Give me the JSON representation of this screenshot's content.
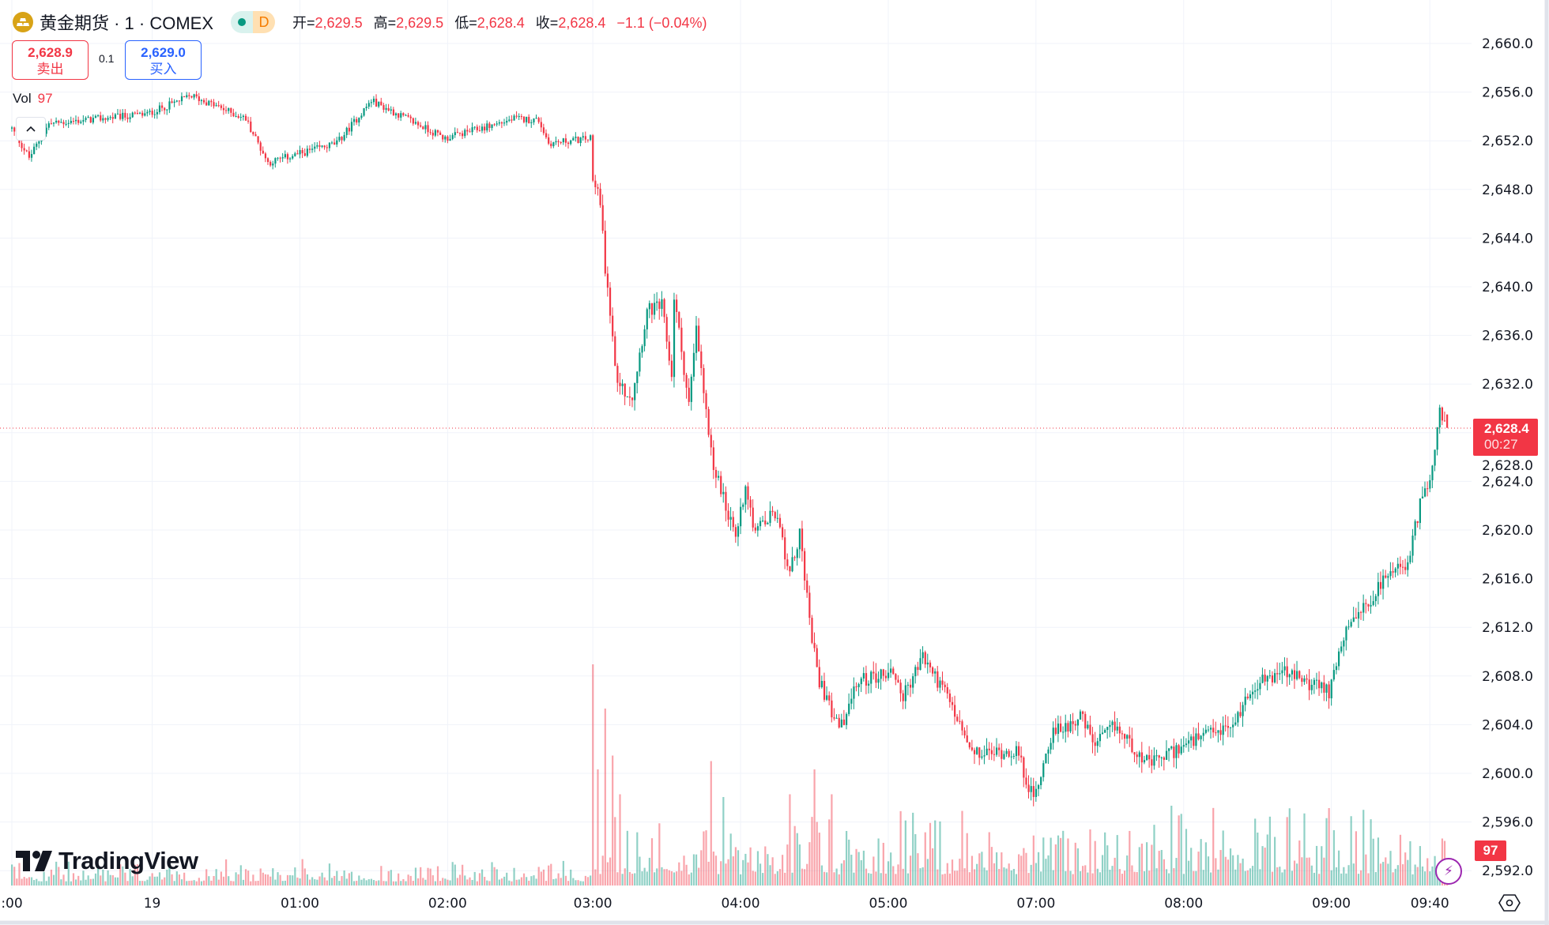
{
  "header": {
    "title": "黄金期货 · 1 · COMEX",
    "interval_badge": "D",
    "ohlc": [
      {
        "k": "开=",
        "v": "2,629.5"
      },
      {
        "k": "高=",
        "v": "2,629.5"
      },
      {
        "k": "低=",
        "v": "2,628.4"
      },
      {
        "k": "收=",
        "v": "2,628.4"
      }
    ],
    "change": "−1.1 (−0.04%)"
  },
  "trade": {
    "sell_price": "2,628.9",
    "sell_label": "卖出",
    "spread": "0.1",
    "buy_price": "2,629.0",
    "buy_label": "买入"
  },
  "volume_legend": {
    "label": "Vol",
    "value": "97"
  },
  "brand": "TradingView",
  "last_price": {
    "price": "2,628.4",
    "countdown": "00:27"
  },
  "last_volume": "97",
  "colors": {
    "up": "#089981",
    "down": "#f23645",
    "accent": "#2962ff",
    "grid": "#f0f3fa"
  },
  "chart_data": {
    "type": "candlestick",
    "title": "黄金期货 · 1 · COMEX",
    "ylim": [
      2592,
      2660
    ],
    "y_ticks": [
      "2,660.0",
      "2,656.0",
      "2,652.0",
      "2,648.0",
      "2,644.0",
      "2,640.0",
      "2,636.0",
      "2,632.0",
      "2,628.0",
      "2,624.0",
      "2,620.0",
      "2,616.0",
      "2,612.0",
      "2,608.0",
      "2,604.0",
      "2,600.0",
      "2,596.0",
      "2,592.0"
    ],
    "y_tick_values": [
      2660,
      2656,
      2652,
      2648,
      2644,
      2640,
      2636,
      2632,
      2628,
      2624,
      2620,
      2616,
      2612,
      2608,
      2604,
      2600,
      2596,
      2592
    ],
    "x_ticks": [
      {
        "label": ":00",
        "bar": 0
      },
      {
        "label": "19",
        "bar": 57
      },
      {
        "label": "01:00",
        "bar": 117
      },
      {
        "label": "02:00",
        "bar": 177
      },
      {
        "label": "03:00",
        "bar": 236
      },
      {
        "label": "04:00",
        "bar": 296
      },
      {
        "label": "05:00",
        "bar": 356
      },
      {
        "label": "07:00",
        "bar": 416
      },
      {
        "label": "08:00",
        "bar": 476
      },
      {
        "label": "09:00",
        "bar": 536
      },
      {
        "label": "09:40",
        "bar": 576
      }
    ],
    "bar_count": 584,
    "price_path": [
      [
        0,
        2653
      ],
      [
        7,
        2650.6
      ],
      [
        15,
        2653.4
      ],
      [
        55,
        2654.2
      ],
      [
        73,
        2655.7
      ],
      [
        95,
        2653.8
      ],
      [
        104,
        2650.2
      ],
      [
        132,
        2651.8
      ],
      [
        146,
        2655.3
      ],
      [
        176,
        2652.2
      ],
      [
        204,
        2653.8
      ],
      [
        214,
        2653.7
      ],
      [
        218,
        2651.8
      ],
      [
        235,
        2652.2
      ],
      [
        236,
        2648.5
      ],
      [
        239,
        2647.3
      ],
      [
        241,
        2641.6
      ],
      [
        246,
        2631.9
      ],
      [
        252,
        2631.1
      ],
      [
        258,
        2638
      ],
      [
        264,
        2638.4
      ],
      [
        268,
        2632.7
      ],
      [
        269,
        2639.2
      ],
      [
        275,
        2630.3
      ],
      [
        278,
        2636.4
      ],
      [
        284,
        2626.2
      ],
      [
        294,
        2619.3
      ],
      [
        298,
        2623.8
      ],
      [
        302,
        2619.8
      ],
      [
        310,
        2621.4
      ],
      [
        316,
        2616.5
      ],
      [
        320,
        2619.8
      ],
      [
        324,
        2612.4
      ],
      [
        328,
        2607.6
      ],
      [
        336,
        2603.5
      ],
      [
        344,
        2607.6
      ],
      [
        358,
        2608.4
      ],
      [
        362,
        2606.3
      ],
      [
        370,
        2609.6
      ],
      [
        380,
        2606.3
      ],
      [
        390,
        2601.5
      ],
      [
        408,
        2601.9
      ],
      [
        415,
        2597.8
      ],
      [
        422,
        2603.1
      ],
      [
        434,
        2604.7
      ],
      [
        440,
        2602.3
      ],
      [
        448,
        2603.9
      ],
      [
        462,
        2600.7
      ],
      [
        476,
        2602.3
      ],
      [
        496,
        2603.9
      ],
      [
        504,
        2607.2
      ],
      [
        516,
        2608.4
      ],
      [
        535,
        2606.7
      ],
      [
        541,
        2611.2
      ],
      [
        557,
        2615.7
      ],
      [
        567,
        2617.3
      ],
      [
        573,
        2623
      ],
      [
        577,
        2625
      ],
      [
        580,
        2629.5
      ],
      [
        583,
        2628.4
      ]
    ],
    "last_bar": {
      "open": 2629.5,
      "high": 2629.5,
      "low": 2628.4,
      "close": 2628.4,
      "volume": 97
    },
    "volume_spikes": [
      [
        236,
        800
      ],
      [
        238,
        420
      ],
      [
        241,
        640
      ],
      [
        244,
        470
      ],
      [
        247,
        330
      ],
      [
        284,
        450
      ],
      [
        289,
        320
      ],
      [
        316,
        330
      ],
      [
        326,
        420
      ],
      [
        333,
        330
      ],
      [
        535,
        280
      ],
      [
        537,
        200
      ],
      [
        581,
        170
      ]
    ]
  }
}
